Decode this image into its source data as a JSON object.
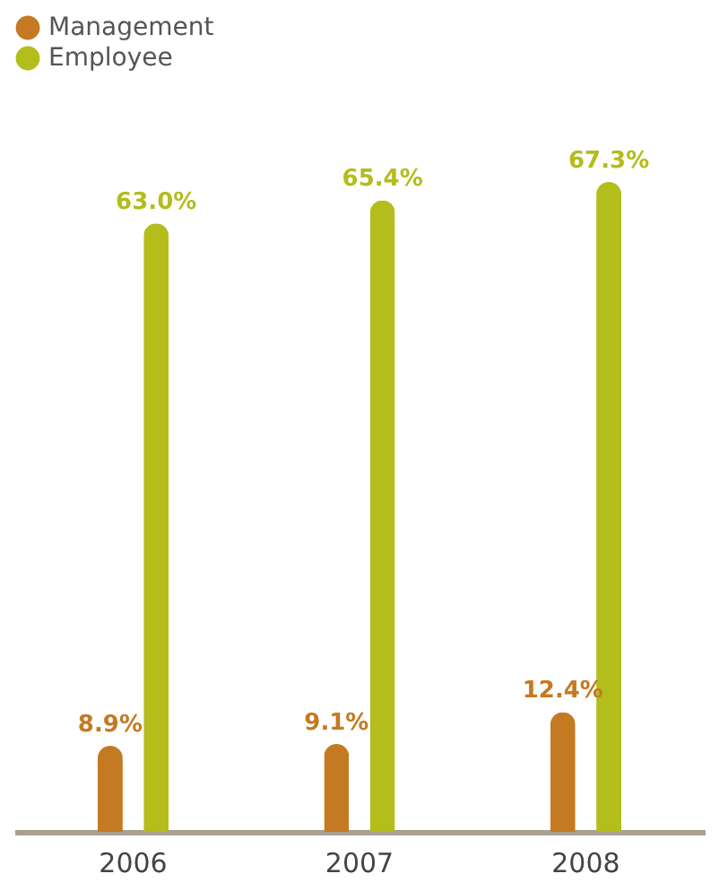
{
  "chart_data": {
    "type": "bar",
    "categories": [
      "2006",
      "2007",
      "2008"
    ],
    "series": [
      {
        "name": "Management",
        "color": "#c47a22",
        "values": [
          8.9,
          9.1,
          12.4
        ],
        "value_labels": [
          "8.9%",
          "9.1%",
          "12.4%"
        ]
      },
      {
        "name": "Employee",
        "color": "#b3bd1c",
        "values": [
          63.0,
          65.4,
          67.3
        ],
        "value_labels": [
          "63.0%",
          "65.4%",
          "67.3%"
        ]
      }
    ],
    "legend": "top left",
    "grid": false,
    "tick_labels": "x"
  }
}
